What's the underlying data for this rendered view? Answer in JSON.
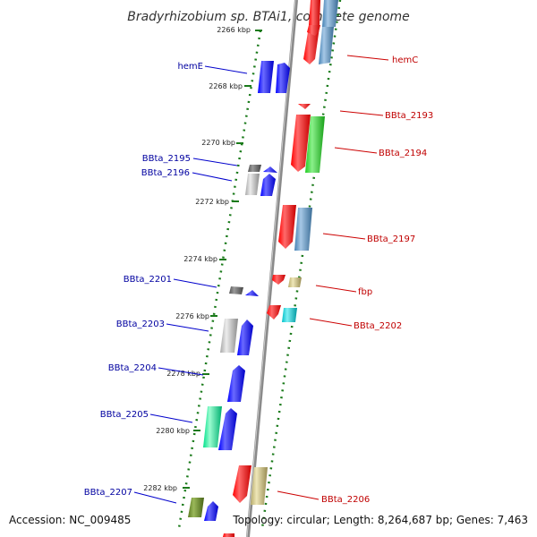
{
  "title": "Bradyrhizobium sp. BTAi1, complete genome",
  "accession": "Accession: NC_009485",
  "topology": "Topology: circular; Length: 8,264,687 bp; Genes: 7,463",
  "tick_labels": [
    "2266 kbp",
    "2268 kbp",
    "2270 kbp",
    "2272 kbp",
    "2274 kbp",
    "2276 kbp",
    "2278 kbp",
    "2280 kbp",
    "2282 kbp"
  ],
  "left_genes": [
    "hemE",
    "BBta_2195",
    "BBta_2196",
    "BBta_2201",
    "BBta_2203",
    "BBta_2204",
    "BBta_2205",
    "BBta_2207"
  ],
  "right_genes": [
    "hemC",
    "BBta_2193",
    "BBta_2194",
    "BBta_2197",
    "fbp",
    "BBta_2202",
    "BBta_2206"
  ],
  "colors": {
    "left_label": "#0000a0",
    "right_label": "#c00000",
    "backbone": "#888888",
    "tick": "#1a7a1a"
  }
}
